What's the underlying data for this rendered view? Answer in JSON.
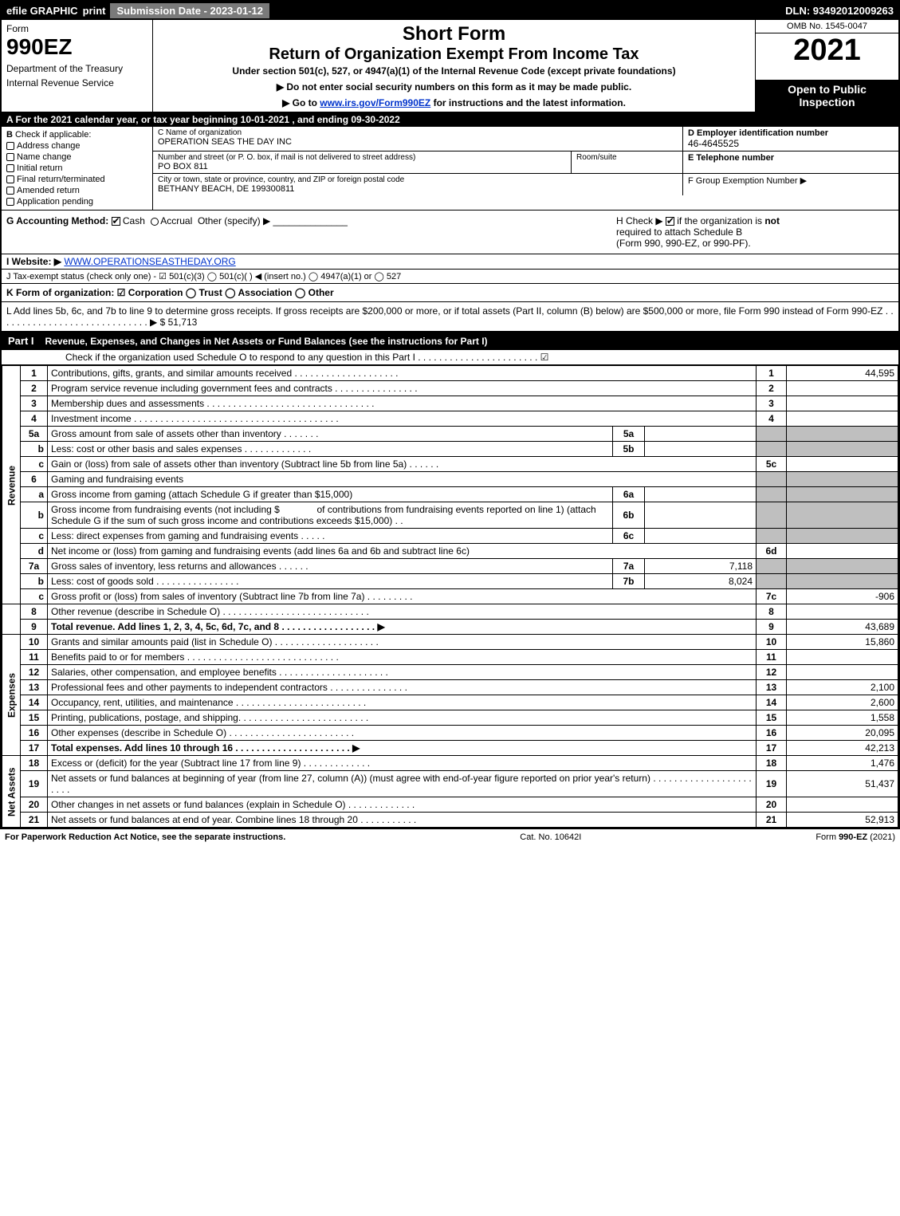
{
  "topbar": {
    "efile": "efile GRAPHIC",
    "print": "print",
    "submission": "Submission Date - 2023-01-12",
    "dln": "DLN: 93492012009263"
  },
  "header": {
    "formWord": "Form",
    "formNumber": "990EZ",
    "dept1": "Department of the Treasury",
    "dept2": "Internal Revenue Service",
    "shortForm": "Short Form",
    "mainTitle": "Return of Organization Exempt From Income Tax",
    "subtitle": "Under section 501(c), 527, or 4947(a)(1) of the Internal Revenue Code (except private foundations)",
    "warn": "▶ Do not enter social security numbers on this form as it may be made public.",
    "goto_prefix": "▶ Go to ",
    "goto_link": "www.irs.gov/Form990EZ",
    "goto_suffix": " for instructions and the latest information.",
    "omb": "OMB No. 1545-0047",
    "year": "2021",
    "openTo": "Open to Public Inspection"
  },
  "rowA": "A  For the 2021 calendar year, or tax year beginning 10-01-2021 , and ending 09-30-2022",
  "B": {
    "header": "B",
    "checkIf": "Check if applicable:",
    "opts": [
      "Address change",
      "Name change",
      "Initial return",
      "Final return/terminated",
      "Amended return",
      "Application pending"
    ]
  },
  "C": {
    "label": "C Name of organization",
    "value": "OPERATION SEAS THE DAY INC"
  },
  "addr": {
    "streetLabel": "Number and street (or P. O. box, if mail is not delivered to street address)",
    "street": "PO BOX 811",
    "roomLabel": "Room/suite",
    "cityLabel": "City or town, state or province, country, and ZIP or foreign postal code",
    "city": "BETHANY BEACH, DE  199300811"
  },
  "D": {
    "label": "D Employer identification number",
    "value": "46-4645525"
  },
  "E": {
    "label": "E Telephone number"
  },
  "F": {
    "label": "F Group Exemption Number  ▶"
  },
  "G": {
    "prefix": "G Accounting Method:",
    "cash": "Cash",
    "accrual": "Accrual",
    "other": "Other (specify) ▶"
  },
  "H": {
    "line1_a": "H  Check ▶ ",
    "line1_b": " if the organization is ",
    "not": "not",
    "line2": "required to attach Schedule B",
    "line3": "(Form 990, 990-EZ, or 990-PF)."
  },
  "I": {
    "prefix": "I Website: ▶",
    "url": "WWW.OPERATIONSEASTHEDAY.ORG"
  },
  "J": "J Tax-exempt status (check only one) -  ☑ 501(c)(3)  ◯ 501(c)(  ) ◀ (insert no.)  ◯ 4947(a)(1) or  ◯ 527",
  "K": "K Form of organization:  ☑ Corporation  ◯ Trust  ◯ Association  ◯ Other",
  "L": {
    "text": "L Add lines 5b, 6c, and 7b to line 9 to determine gross receipts. If gross receipts are $200,000 or more, or if total assets (Part II, column (B) below) are $500,000 or more, file Form 990 instead of Form 990-EZ . . . . . . . . . . . . . . . . . . . . . . . . . . . . . ▶ $ 51,713"
  },
  "partI": {
    "label": "Part I",
    "title": "Revenue, Expenses, and Changes in Net Assets or Fund Balances (see the instructions for Part I)",
    "checkIf": "Check if the organization used Schedule O to respond to any question in this Part I . . . . . . . . . . . . . . . . . . . . . . .  ☑"
  },
  "sideLabels": {
    "rev": "Revenue",
    "exp": "Expenses",
    "na": "Net Assets"
  },
  "lines": {
    "l1": {
      "n": "1",
      "d": "Contributions, gifts, grants, and similar amounts received . . . . . . . . . . . . . . . . . . . .",
      "rn": "1",
      "amt": "44,595"
    },
    "l2": {
      "n": "2",
      "d": "Program service revenue including government fees and contracts . . . . . . . . . . . . . . . .",
      "rn": "2",
      "amt": ""
    },
    "l3": {
      "n": "3",
      "d": "Membership dues and assessments  . . . . . . . . . . . . . . . . . . . . . . . . . . . . . . . .",
      "rn": "3",
      "amt": ""
    },
    "l4": {
      "n": "4",
      "d": "Investment income . . . . . . . . . . . . . . . . . . . . . . . . . . . . . . . . . . . . . . .",
      "rn": "4",
      "amt": ""
    },
    "l5a": {
      "n": "5a",
      "d": "Gross amount from sale of assets other than inventory  . . . . . . .",
      "mn": "5a",
      "mv": ""
    },
    "l5b": {
      "n": "b",
      "d": "Less: cost or other basis and sales expenses  . . . . . . . . . . . . .",
      "mn": "5b",
      "mv": ""
    },
    "l5c": {
      "n": "c",
      "d": "Gain or (loss) from sale of assets other than inventory (Subtract line 5b from line 5a)  . . . . . .",
      "rn": "5c",
      "amt": ""
    },
    "l6": {
      "n": "6",
      "d": "Gaming and fundraising events"
    },
    "l6a": {
      "n": "a",
      "d": "Gross income from gaming (attach Schedule G if greater than $15,000)",
      "mn": "6a",
      "mv": ""
    },
    "l6b": {
      "n": "b",
      "d1": "Gross income from fundraising events (not including $",
      "d2": "of contributions from fundraising events reported on line 1) (attach Schedule G if the sum of such gross income and contributions exceeds $15,000)   . .",
      "mn": "6b",
      "mv": ""
    },
    "l6c": {
      "n": "c",
      "d": "Less: direct expenses from gaming and fundraising events   . . . . .",
      "mn": "6c",
      "mv": ""
    },
    "l6d": {
      "n": "d",
      "d": "Net income or (loss) from gaming and fundraising events (add lines 6a and 6b and subtract line 6c)",
      "rn": "6d",
      "amt": ""
    },
    "l7a": {
      "n": "7a",
      "d": "Gross sales of inventory, less returns and allowances  . . . . . .",
      "mn": "7a",
      "mv": "7,118"
    },
    "l7b": {
      "n": "b",
      "d": "Less: cost of goods sold     . . . . . . . . . . . . . . . .",
      "mn": "7b",
      "mv": "8,024"
    },
    "l7c": {
      "n": "c",
      "d": "Gross profit or (loss) from sales of inventory (Subtract line 7b from line 7a)  . . . . . . . . .",
      "rn": "7c",
      "amt": "-906"
    },
    "l8": {
      "n": "8",
      "d": "Other revenue (describe in Schedule O) . . . . . . . . . . . . . . . . . . . . . . . . . . . .",
      "rn": "8",
      "amt": ""
    },
    "l9": {
      "n": "9",
      "d": "Total revenue. Add lines 1, 2, 3, 4, 5c, 6d, 7c, and 8  . . . . . . . . . . . . . . . . . .   ▶",
      "rn": "9",
      "amt": "43,689",
      "bold": true
    },
    "l10": {
      "n": "10",
      "d": "Grants and similar amounts paid (list in Schedule O)  . . . . . . . . . . . . . . . . . . . .",
      "rn": "10",
      "amt": "15,860"
    },
    "l11": {
      "n": "11",
      "d": "Benefits paid to or for members    . . . . . . . . . . . . . . . . . . . . . . . . . . . . .",
      "rn": "11",
      "amt": ""
    },
    "l12": {
      "n": "12",
      "d": "Salaries, other compensation, and employee benefits . . . . . . . . . . . . . . . . . . . . .",
      "rn": "12",
      "amt": ""
    },
    "l13": {
      "n": "13",
      "d": "Professional fees and other payments to independent contractors . . . . . . . . . . . . . . .",
      "rn": "13",
      "amt": "2,100"
    },
    "l14": {
      "n": "14",
      "d": "Occupancy, rent, utilities, and maintenance . . . . . . . . . . . . . . . . . . . . . . . . .",
      "rn": "14",
      "amt": "2,600"
    },
    "l15": {
      "n": "15",
      "d": "Printing, publications, postage, and shipping. . . . . . . . . . . . . . . . . . . . . . . . .",
      "rn": "15",
      "amt": "1,558"
    },
    "l16": {
      "n": "16",
      "d": "Other expenses (describe in Schedule O)     . . . . . . . . . . . . . . . . . . . . . . . .",
      "rn": "16",
      "amt": "20,095"
    },
    "l17": {
      "n": "17",
      "d": "Total expenses. Add lines 10 through 16     . . . . . . . . . . . . . . . . . . . . . .   ▶",
      "rn": "17",
      "amt": "42,213",
      "bold": true
    },
    "l18": {
      "n": "18",
      "d": "Excess or (deficit) for the year (Subtract line 17 from line 9)        . . . . . . . . . . . . .",
      "rn": "18",
      "amt": "1,476"
    },
    "l19": {
      "n": "19",
      "d": "Net assets or fund balances at beginning of year (from line 27, column (A)) (must agree with end-of-year figure reported on prior year's return) . . . . . . . . . . . . . . . . . . . . . . .",
      "rn": "19",
      "amt": "51,437"
    },
    "l20": {
      "n": "20",
      "d": "Other changes in net assets or fund balances (explain in Schedule O) . . . . . . . . . . . . .",
      "rn": "20",
      "amt": ""
    },
    "l21": {
      "n": "21",
      "d": "Net assets or fund balances at end of year. Combine lines 18 through 20 . . . . . . . . . . .",
      "rn": "21",
      "amt": "52,913"
    }
  },
  "footer": {
    "left": "For Paperwork Reduction Act Notice, see the separate instructions.",
    "center": "Cat. No. 10642I",
    "right_prefix": "Form ",
    "right_form": "990-EZ",
    "right_suffix": " (2021)"
  }
}
